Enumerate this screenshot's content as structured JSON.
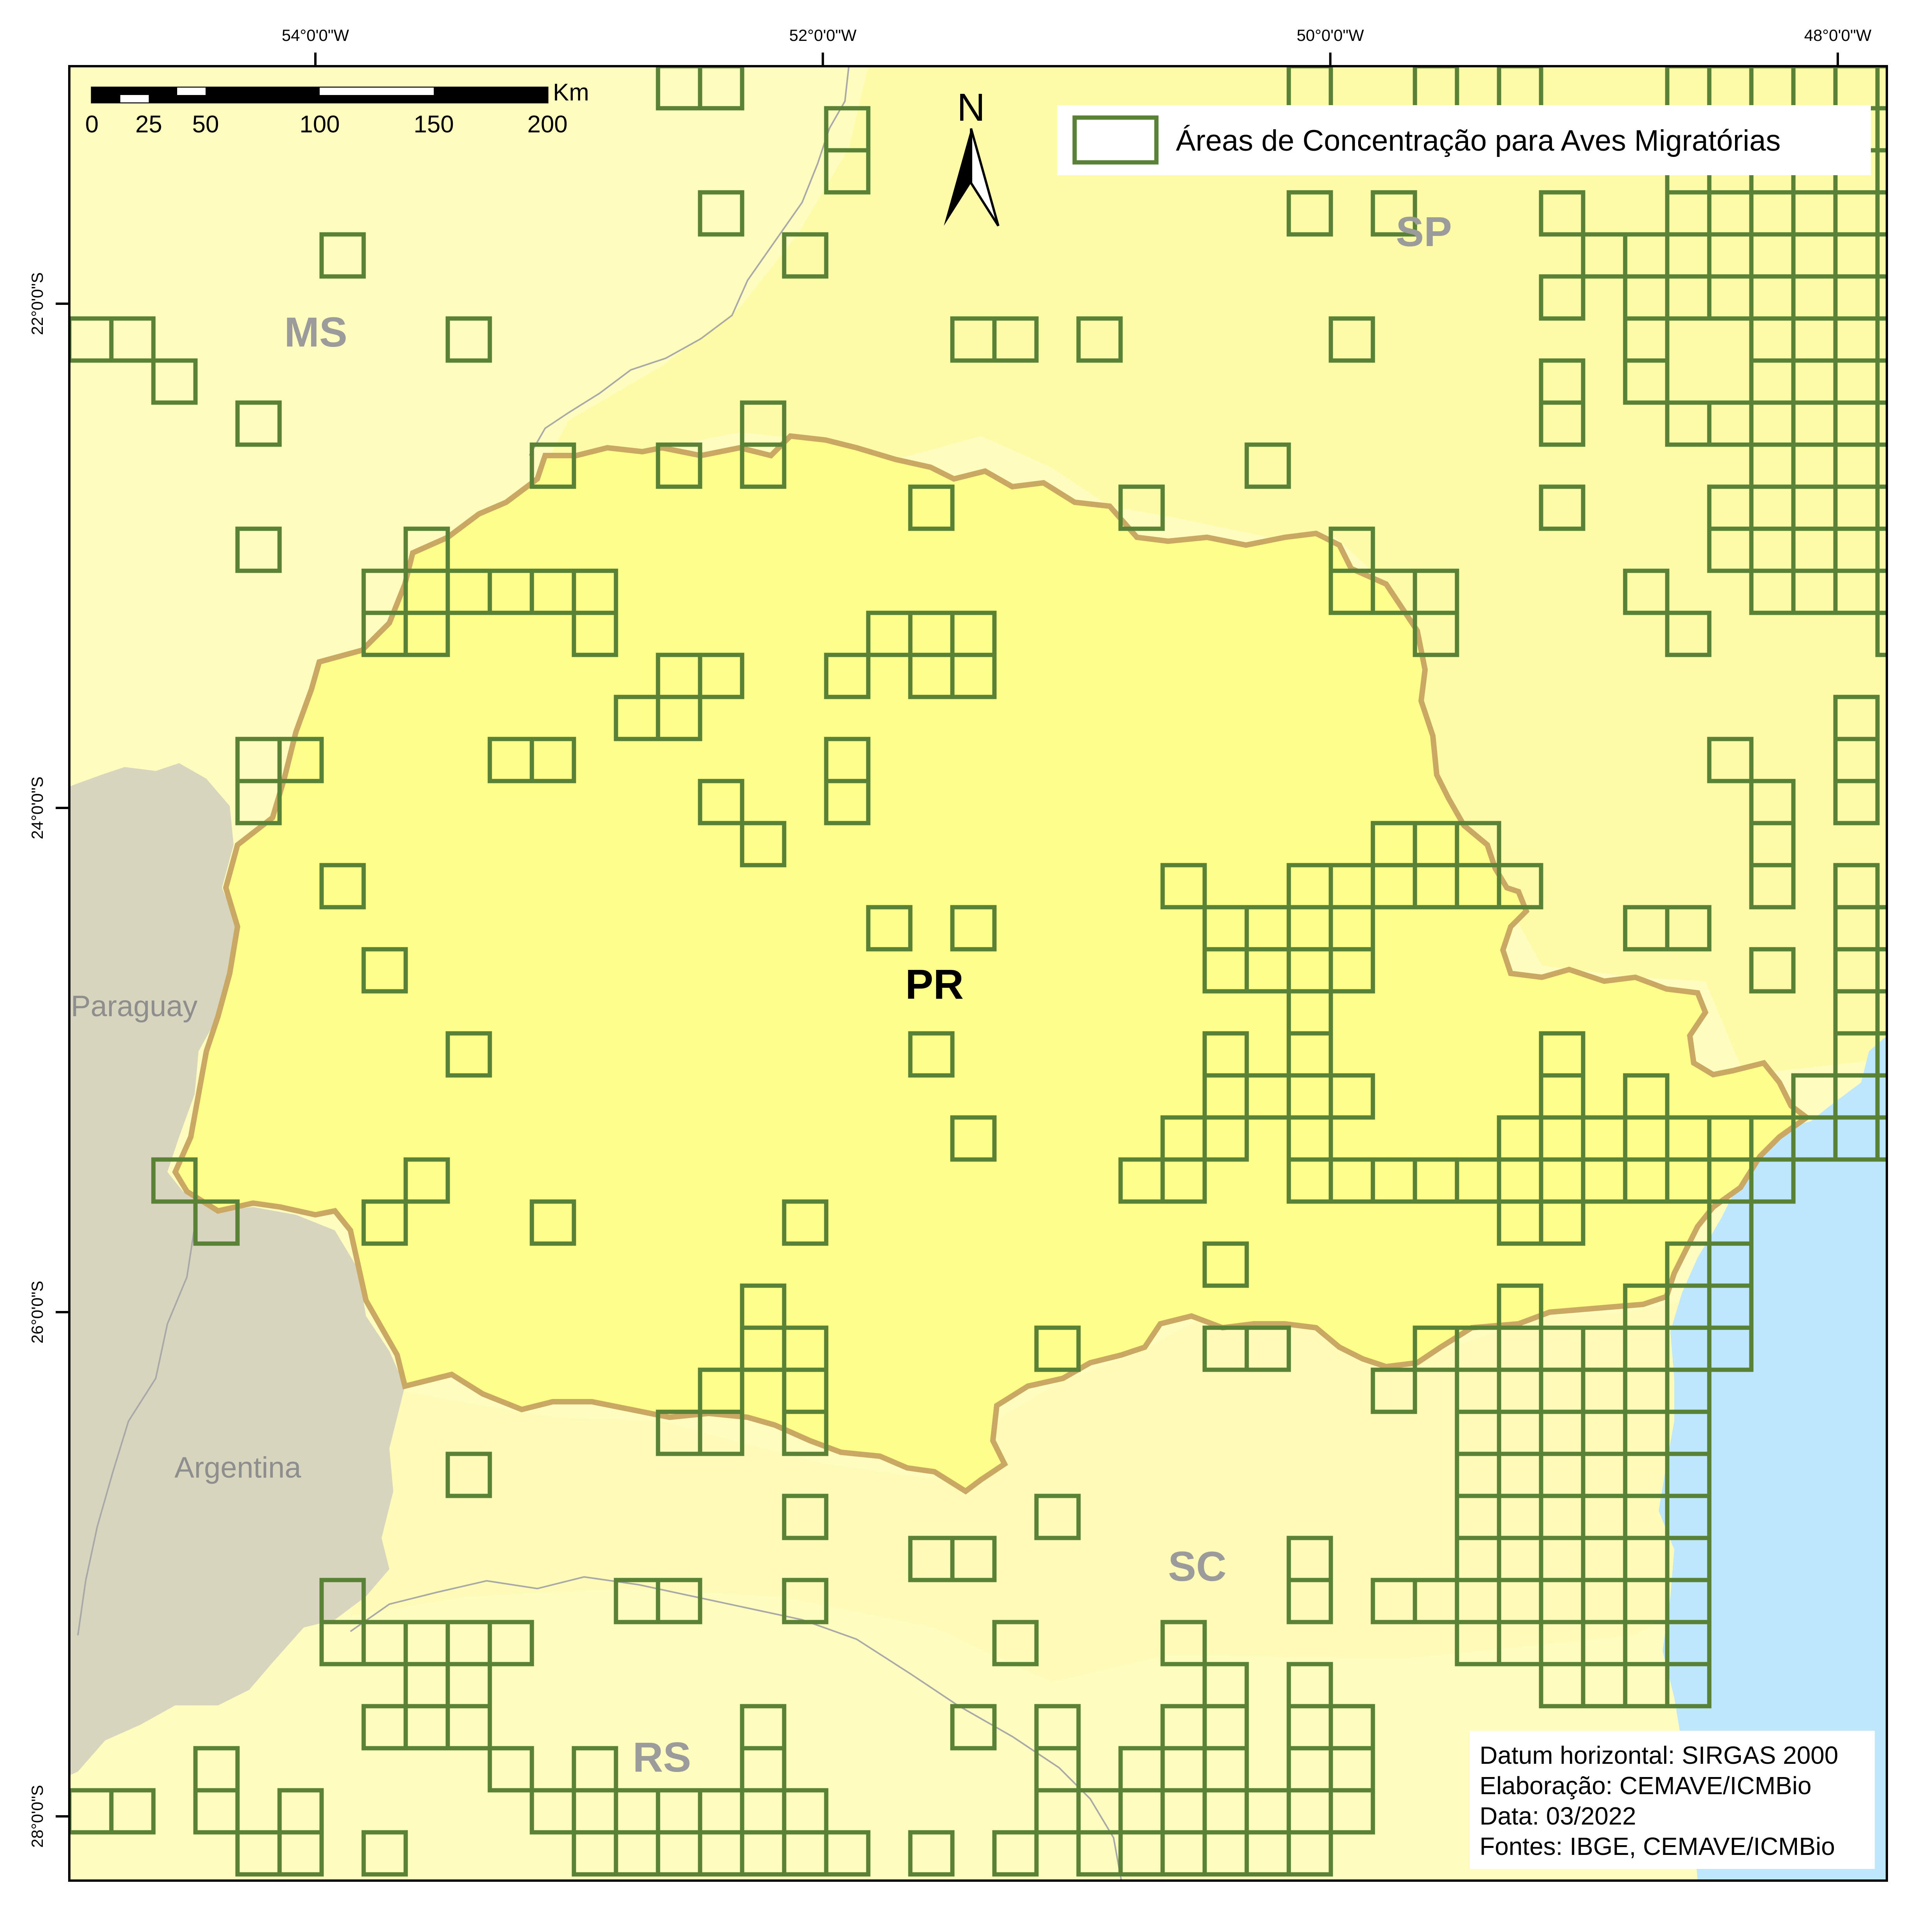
{
  "title": "",
  "graticule": {
    "longitudes": [
      {
        "value": -54,
        "label": "54°0'0\"W"
      },
      {
        "value": -52,
        "label": "52°0'0\"W"
      },
      {
        "value": -50,
        "label": "50°0'0\"W"
      },
      {
        "value": -48,
        "label": "48°0'0\"W"
      }
    ],
    "latitudes": [
      {
        "value": -22,
        "label": "22°0'0\"S"
      },
      {
        "value": -24,
        "label": "24°0'0\"S"
      },
      {
        "value": -26,
        "label": "26°0'0\"S"
      },
      {
        "value": -28,
        "label": "28°0'0\"S"
      }
    ]
  },
  "labels": {
    "ms": "MS",
    "sp": "SP",
    "pr": "PR",
    "sc": "SC",
    "rs": "RS",
    "paraguay": "Paraguay",
    "argentina": "Argentina",
    "north": "N"
  },
  "legend": {
    "item": "Áreas de Concentração para Aves Migratórias"
  },
  "scale_bar": {
    "unit": "Km",
    "ticks": [
      "0",
      "25",
      "50",
      "100",
      "150",
      "200"
    ]
  },
  "credits": {
    "datum": "Datum horizontal: SIRGAS 2000",
    "elaboration": "Elaboração: CEMAVE/ICMBio",
    "date": "Data: 03/2022",
    "sources": "Fontes: IBGE, CEMAVE/ICMBio"
  },
  "colors": {
    "frame_background": "#fefcbf",
    "neighbor_states": "#fefbb4",
    "parana_fill": "#feff8a",
    "parana_border": "#c9a864",
    "foreign_countries": "#d7d5bd",
    "ocean": "#bfe7fb",
    "grid_cell_stroke": "#5a8236",
    "rivers": "#a8a8a8"
  },
  "grid_cells": [
    [
      14,
      0
    ],
    [
      15,
      0
    ],
    [
      29,
      0
    ],
    [
      32,
      0
    ],
    [
      34,
      0
    ],
    [
      38,
      0
    ],
    [
      39,
      0
    ],
    [
      40,
      0
    ],
    [
      41,
      0
    ],
    [
      42,
      0
    ],
    [
      43,
      0
    ],
    [
      18,
      1
    ],
    [
      29,
      1
    ],
    [
      34,
      1
    ],
    [
      38,
      1
    ],
    [
      39,
      1
    ],
    [
      40,
      1
    ],
    [
      41,
      1
    ],
    [
      42,
      1
    ],
    [
      43,
      1
    ],
    [
      18,
      2
    ],
    [
      38,
      2
    ],
    [
      39,
      2
    ],
    [
      40,
      2
    ],
    [
      41,
      2
    ],
    [
      42,
      2
    ],
    [
      43,
      2
    ],
    [
      15,
      3
    ],
    [
      29,
      3
    ],
    [
      31,
      3
    ],
    [
      35,
      3
    ],
    [
      38,
      3
    ],
    [
      39,
      3
    ],
    [
      40,
      3
    ],
    [
      41,
      3
    ],
    [
      42,
      3
    ],
    [
      43,
      3
    ],
    [
      6,
      4
    ],
    [
      17,
      4
    ],
    [
      36,
      4
    ],
    [
      37,
      4
    ],
    [
      38,
      4
    ],
    [
      39,
      4
    ],
    [
      40,
      4
    ],
    [
      41,
      4
    ],
    [
      42,
      4
    ],
    [
      43,
      4
    ],
    [
      35,
      5
    ],
    [
      37,
      5
    ],
    [
      38,
      5
    ],
    [
      39,
      5
    ],
    [
      40,
      5
    ],
    [
      41,
      5
    ],
    [
      42,
      5
    ],
    [
      43,
      5
    ],
    [
      0,
      6
    ],
    [
      1,
      6
    ],
    [
      9,
      6
    ],
    [
      21,
      6
    ],
    [
      22,
      6
    ],
    [
      24,
      6
    ],
    [
      30,
      6
    ],
    [
      37,
      6
    ],
    [
      40,
      6
    ],
    [
      41,
      6
    ],
    [
      42,
      6
    ],
    [
      43,
      6
    ],
    [
      2,
      7
    ],
    [
      35,
      7
    ],
    [
      37,
      7
    ],
    [
      40,
      7
    ],
    [
      41,
      7
    ],
    [
      42,
      7
    ],
    [
      43,
      7
    ],
    [
      4,
      8
    ],
    [
      16,
      8
    ],
    [
      35,
      8
    ],
    [
      38,
      8
    ],
    [
      39,
      8
    ],
    [
      40,
      8
    ],
    [
      41,
      8
    ],
    [
      42,
      8
    ],
    [
      43,
      8
    ],
    [
      11,
      9
    ],
    [
      14,
      9
    ],
    [
      16,
      9
    ],
    [
      28,
      9
    ],
    [
      40,
      9
    ],
    [
      41,
      9
    ],
    [
      42,
      9
    ],
    [
      43,
      9
    ],
    [
      20,
      10
    ],
    [
      25,
      10
    ],
    [
      35,
      10
    ],
    [
      39,
      10
    ],
    [
      40,
      10
    ],
    [
      41,
      10
    ],
    [
      42,
      10
    ],
    [
      4,
      11
    ],
    [
      8,
      11
    ],
    [
      30,
      11
    ],
    [
      39,
      11
    ],
    [
      40,
      11
    ],
    [
      41,
      11
    ],
    [
      42,
      11
    ],
    [
      43,
      11
    ],
    [
      7,
      12
    ],
    [
      8,
      12
    ],
    [
      9,
      12
    ],
    [
      10,
      12
    ],
    [
      11,
      12
    ],
    [
      12,
      12
    ],
    [
      30,
      12
    ],
    [
      31,
      12
    ],
    [
      32,
      12
    ],
    [
      37,
      12
    ],
    [
      40,
      12
    ],
    [
      41,
      12
    ],
    [
      42,
      12
    ],
    [
      7,
      13
    ],
    [
      8,
      13
    ],
    [
      12,
      13
    ],
    [
      19,
      13
    ],
    [
      20,
      13
    ],
    [
      21,
      13
    ],
    [
      32,
      13
    ],
    [
      38,
      13
    ],
    [
      43,
      13
    ],
    [
      14,
      14
    ],
    [
      15,
      14
    ],
    [
      18,
      14
    ],
    [
      20,
      14
    ],
    [
      21,
      14
    ],
    [
      13,
      15
    ],
    [
      14,
      15
    ],
    [
      42,
      15
    ],
    [
      5,
      16
    ],
    [
      4,
      16
    ],
    [
      10,
      16
    ],
    [
      11,
      16
    ],
    [
      18,
      16
    ],
    [
      39,
      16
    ],
    [
      42,
      16
    ],
    [
      4,
      17
    ],
    [
      15,
      17
    ],
    [
      18,
      17
    ],
    [
      40,
      17
    ],
    [
      42,
      17
    ],
    [
      16,
      18
    ],
    [
      31,
      18
    ],
    [
      32,
      18
    ],
    [
      33,
      18
    ],
    [
      40,
      18
    ],
    [
      6,
      19
    ],
    [
      26,
      19
    ],
    [
      29,
      19
    ],
    [
      30,
      19
    ],
    [
      31,
      19
    ],
    [
      32,
      19
    ],
    [
      33,
      19
    ],
    [
      34,
      19
    ],
    [
      40,
      19
    ],
    [
      42,
      19
    ],
    [
      19,
      20
    ],
    [
      21,
      20
    ],
    [
      27,
      20
    ],
    [
      28,
      20
    ],
    [
      29,
      20
    ],
    [
      30,
      20
    ],
    [
      37,
      20
    ],
    [
      38,
      20
    ],
    [
      42,
      20
    ],
    [
      43,
      20
    ],
    [
      7,
      21
    ],
    [
      27,
      21
    ],
    [
      28,
      21
    ],
    [
      29,
      21
    ],
    [
      30,
      21
    ],
    [
      40,
      21
    ],
    [
      42,
      21
    ],
    [
      43,
      21
    ],
    [
      29,
      22
    ],
    [
      42,
      22
    ],
    [
      43,
      22
    ],
    [
      9,
      23
    ],
    [
      20,
      23
    ],
    [
      27,
      23
    ],
    [
      29,
      23
    ],
    [
      35,
      23
    ],
    [
      42,
      23
    ],
    [
      43,
      23
    ],
    [
      27,
      24
    ],
    [
      28,
      24
    ],
    [
      29,
      24
    ],
    [
      30,
      24
    ],
    [
      35,
      24
    ],
    [
      37,
      24
    ],
    [
      41,
      24
    ],
    [
      42,
      24
    ],
    [
      43,
      24
    ],
    [
      21,
      25
    ],
    [
      26,
      25
    ],
    [
      27,
      25
    ],
    [
      29,
      25
    ],
    [
      34,
      25
    ],
    [
      35,
      25
    ],
    [
      36,
      25
    ],
    [
      37,
      25
    ],
    [
      38,
      25
    ],
    [
      39,
      25
    ],
    [
      40,
      25
    ],
    [
      41,
      25
    ],
    [
      42,
      25
    ],
    [
      43,
      25
    ],
    [
      2,
      26
    ],
    [
      8,
      26
    ],
    [
      25,
      26
    ],
    [
      26,
      26
    ],
    [
      29,
      26
    ],
    [
      30,
      26
    ],
    [
      31,
      26
    ],
    [
      32,
      26
    ],
    [
      33,
      26
    ],
    [
      34,
      26
    ],
    [
      35,
      26
    ],
    [
      36,
      26
    ],
    [
      37,
      26
    ],
    [
      38,
      26
    ],
    [
      39,
      26
    ],
    [
      40,
      26
    ],
    [
      3,
      27
    ],
    [
      7,
      27
    ],
    [
      11,
      27
    ],
    [
      17,
      27
    ],
    [
      34,
      27
    ],
    [
      35,
      27
    ],
    [
      39,
      27
    ],
    [
      27,
      28
    ],
    [
      38,
      28
    ],
    [
      39,
      28
    ],
    [
      16,
      29
    ],
    [
      34,
      29
    ],
    [
      37,
      29
    ],
    [
      38,
      29
    ],
    [
      39,
      29
    ],
    [
      16,
      30
    ],
    [
      17,
      30
    ],
    [
      23,
      30
    ],
    [
      27,
      30
    ],
    [
      28,
      30
    ],
    [
      32,
      30
    ],
    [
      33,
      30
    ],
    [
      34,
      30
    ],
    [
      35,
      30
    ],
    [
      36,
      30
    ],
    [
      37,
      30
    ],
    [
      38,
      30
    ],
    [
      39,
      30
    ],
    [
      15,
      31
    ],
    [
      17,
      31
    ],
    [
      31,
      31
    ],
    [
      33,
      31
    ],
    [
      34,
      31
    ],
    [
      35,
      31
    ],
    [
      36,
      31
    ],
    [
      37,
      31
    ],
    [
      38,
      31
    ],
    [
      14,
      32
    ],
    [
      15,
      32
    ],
    [
      17,
      32
    ],
    [
      33,
      32
    ],
    [
      34,
      32
    ],
    [
      35,
      32
    ],
    [
      36,
      32
    ],
    [
      37,
      32
    ],
    [
      38,
      32
    ],
    [
      9,
      33
    ],
    [
      33,
      33
    ],
    [
      34,
      33
    ],
    [
      35,
      33
    ],
    [
      36,
      33
    ],
    [
      37,
      33
    ],
    [
      38,
      33
    ],
    [
      17,
      34
    ],
    [
      23,
      34
    ],
    [
      33,
      34
    ],
    [
      34,
      34
    ],
    [
      35,
      34
    ],
    [
      36,
      34
    ],
    [
      37,
      34
    ],
    [
      38,
      34
    ],
    [
      20,
      35
    ],
    [
      21,
      35
    ],
    [
      29,
      35
    ],
    [
      33,
      35
    ],
    [
      34,
      35
    ],
    [
      35,
      35
    ],
    [
      36,
      35
    ],
    [
      37,
      35
    ],
    [
      38,
      35
    ],
    [
      6,
      36
    ],
    [
      13,
      36
    ],
    [
      14,
      36
    ],
    [
      17,
      36
    ],
    [
      29,
      36
    ],
    [
      31,
      36
    ],
    [
      32,
      36
    ],
    [
      33,
      36
    ],
    [
      34,
      36
    ],
    [
      35,
      36
    ],
    [
      36,
      36
    ],
    [
      37,
      36
    ],
    [
      38,
      36
    ],
    [
      6,
      37
    ],
    [
      7,
      37
    ],
    [
      8,
      37
    ],
    [
      9,
      37
    ],
    [
      10,
      37
    ],
    [
      22,
      37
    ],
    [
      26,
      37
    ],
    [
      33,
      37
    ],
    [
      34,
      37
    ],
    [
      35,
      37
    ],
    [
      36,
      37
    ],
    [
      37,
      37
    ],
    [
      38,
      37
    ],
    [
      8,
      38
    ],
    [
      9,
      38
    ],
    [
      27,
      38
    ],
    [
      29,
      38
    ],
    [
      35,
      38
    ],
    [
      36,
      38
    ],
    [
      37,
      38
    ],
    [
      38,
      38
    ],
    [
      7,
      39
    ],
    [
      8,
      39
    ],
    [
      9,
      39
    ],
    [
      16,
      39
    ],
    [
      21,
      39
    ],
    [
      23,
      39
    ],
    [
      26,
      39
    ],
    [
      27,
      39
    ],
    [
      29,
      39
    ],
    [
      30,
      39
    ],
    [
      3,
      40
    ],
    [
      10,
      40
    ],
    [
      12,
      40
    ],
    [
      16,
      40
    ],
    [
      23,
      40
    ],
    [
      25,
      40
    ],
    [
      26,
      40
    ],
    [
      27,
      40
    ],
    [
      29,
      40
    ],
    [
      30,
      40
    ],
    [
      0,
      41
    ],
    [
      1,
      41
    ],
    [
      3,
      41
    ],
    [
      5,
      41
    ],
    [
      11,
      41
    ],
    [
      12,
      41
    ],
    [
      13,
      41
    ],
    [
      14,
      41
    ],
    [
      15,
      41
    ],
    [
      16,
      41
    ],
    [
      17,
      41
    ],
    [
      23,
      41
    ],
    [
      24,
      41
    ],
    [
      26,
      41
    ],
    [
      27,
      41
    ],
    [
      28,
      41
    ],
    [
      29,
      41
    ],
    [
      30,
      41
    ],
    [
      4,
      42
    ],
    [
      5,
      42
    ],
    [
      7,
      42
    ],
    [
      12,
      42
    ],
    [
      13,
      42
    ],
    [
      14,
      42
    ],
    [
      15,
      42
    ],
    [
      16,
      42
    ],
    [
      17,
      42
    ],
    [
      18,
      42
    ],
    [
      20,
      42
    ],
    [
      22,
      42
    ],
    [
      24,
      42
    ],
    [
      25,
      42
    ],
    [
      26,
      42
    ],
    [
      27,
      42
    ],
    [
      28,
      42
    ],
    [
      29,
      42
    ]
  ]
}
